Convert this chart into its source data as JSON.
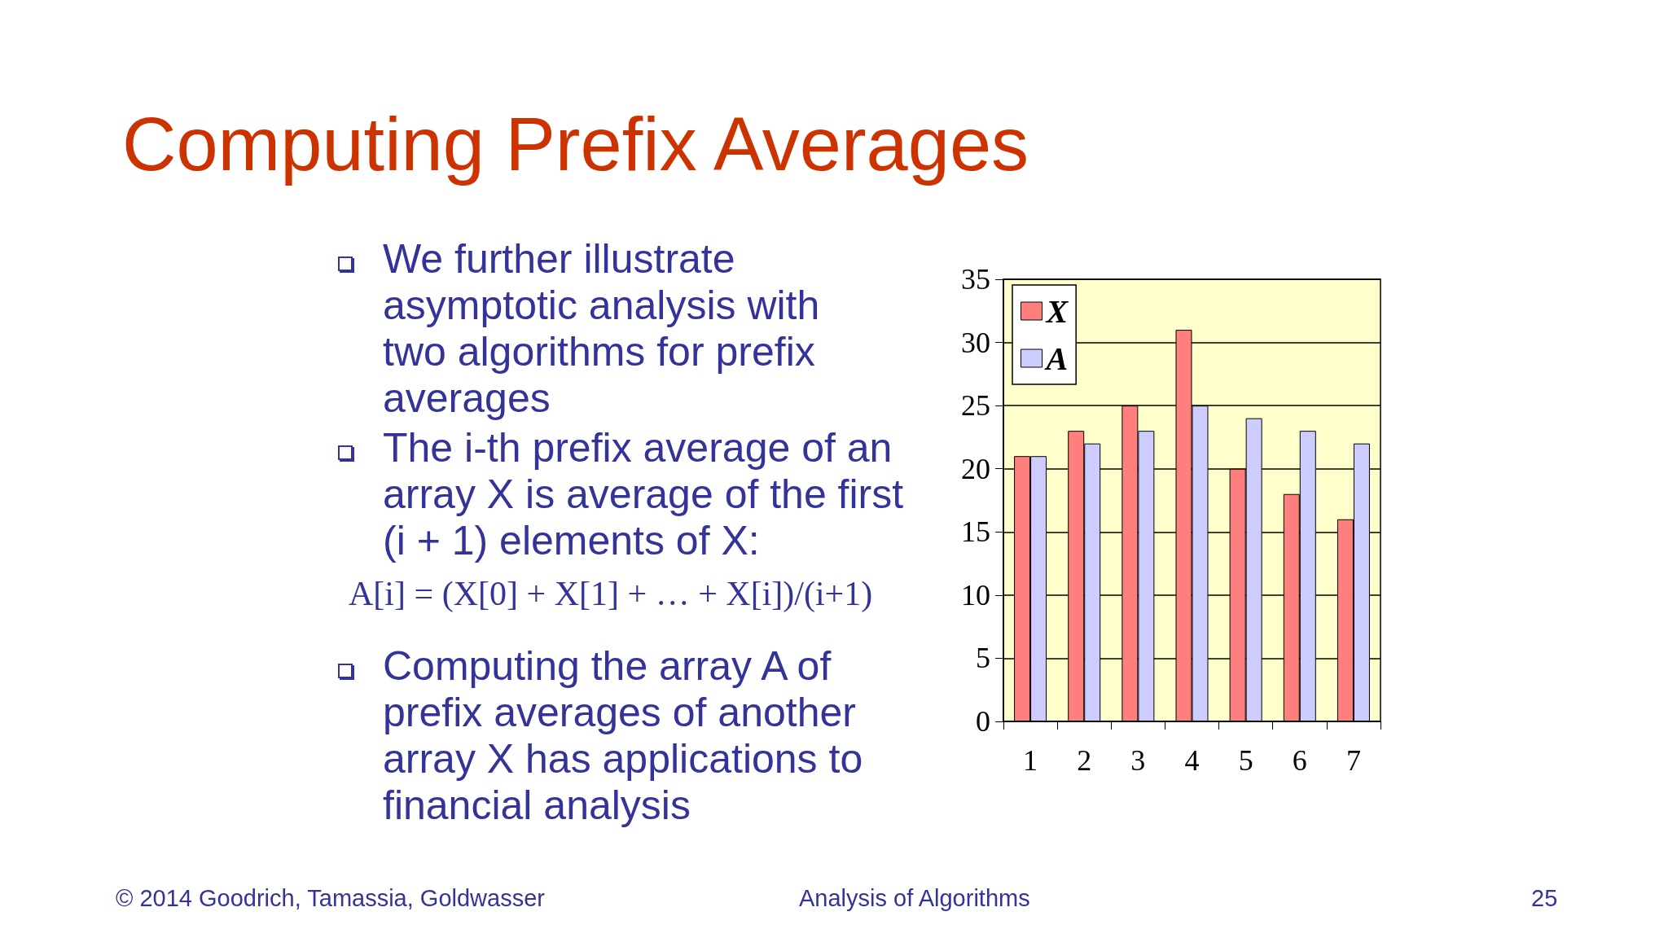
{
  "chart_data": {
    "type": "bar",
    "title": "Computing Prefix Averages",
    "categories": [
      "1",
      "2",
      "3",
      "4",
      "5",
      "6",
      "7"
    ],
    "series": [
      {
        "name": "X",
        "color": "#ff7f7f",
        "values": [
          21,
          23,
          25,
          31,
          20,
          18,
          16
        ]
      },
      {
        "name": "A",
        "color": "#ccccff",
        "values": [
          21,
          22,
          23,
          25,
          24,
          23,
          22
        ]
      }
    ],
    "ylim": [
      0,
      35
    ],
    "yticks": [
      0,
      5,
      10,
      15,
      20,
      25,
      30,
      35
    ],
    "grid": "y",
    "legend": "top left",
    "annotations": [
      "We further illustrate asymptotic analysis with two algorithms for prefix averages",
      "The i-th prefix average of an array X is average of the first (i + 1) elements of X:",
      "A[i] = (X[0] + X[1] + … + X[i])/(i+1)",
      "Computing the array A of prefix averages of another array X has applications to financial analysis",
      "© 2014 Goodrich, Tamassia, Goldwasser",
      "Analysis of Algorithms",
      "25"
    ]
  }
}
